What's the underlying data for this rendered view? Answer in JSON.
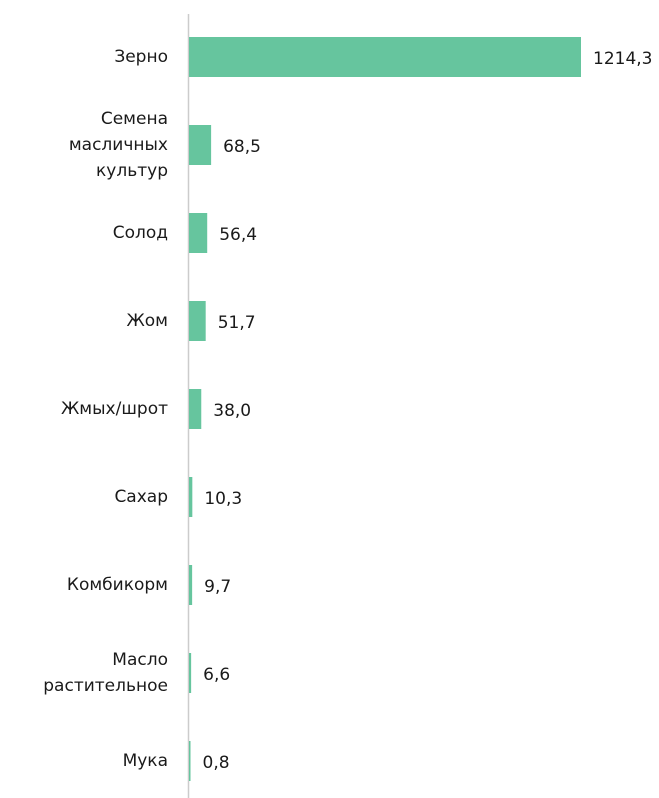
{
  "chart_data": {
    "type": "hbar",
    "categories": [
      "Зерно",
      "Семена масличных культур",
      "Солод",
      "Жом",
      "Жмых/шрот",
      "Сахар",
      "Комбикорм",
      "Масло растительное",
      "Мука"
    ],
    "values": [
      1214.3,
      68.5,
      56.4,
      51.7,
      38.0,
      10.3,
      9.7,
      6.6,
      0.8
    ],
    "value_labels": [
      "1214,3",
      "68,5",
      "56,4",
      "51,7",
      "38,0",
      "10,3",
      "9,7",
      "6,6",
      "0,8"
    ],
    "color": "#66c59e"
  }
}
